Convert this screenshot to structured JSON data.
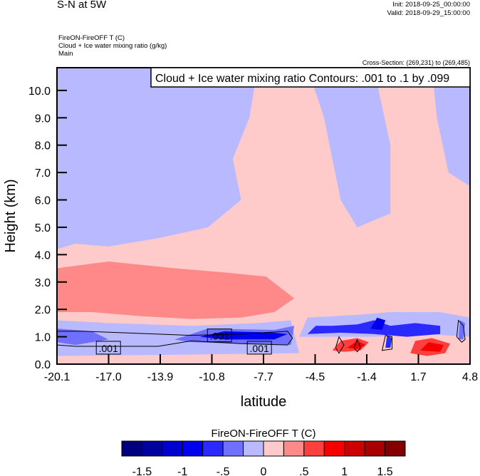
{
  "header": {
    "title": "S-N at 5W",
    "init": "Init: 2018-09-25_00:00:00",
    "valid": "Valid: 2018-09-29_15:00:00",
    "subtitle1": "FireON-FireOFF T   (C)",
    "subtitle2": "Cloud + Ice water mixing ratio   (g/kg)",
    "subtitle3": "Main",
    "cross_section": "Cross-Section: (269,231) to (269,485)"
  },
  "chart_data": {
    "type": "heatmap",
    "title": "Cloud + Ice water mixing ratio Contours: .001 to .1 by .099",
    "xlabel": "latitude",
    "ylabel": "Height (km)",
    "xlim": [
      -20.1,
      4.8
    ],
    "ylim": [
      0,
      10.83
    ],
    "xticks": [
      "-20.1",
      "-17.0",
      "-13.9",
      "-10.8",
      "-7.7",
      "-4.5",
      "-1.4",
      "1.7",
      "4.8"
    ],
    "yticks": [
      "0.0",
      "1.0",
      "2.0",
      "3.0",
      "4.0",
      "5.0",
      "6.0",
      "7.0",
      "8.0",
      "9.0",
      "10.0"
    ],
    "colorbar": {
      "title": "FireON-FireOFF T  (C)",
      "colors": [
        "#00007f",
        "#00009f",
        "#0000cf",
        "#0000f0",
        "#2a2aff",
        "#7070ff",
        "#b9b9ff",
        "#ffcaca",
        "#ff8888",
        "#ff3e3e",
        "#f40000",
        "#cc0000",
        "#a80000",
        "#840000"
      ],
      "levels": [
        -1.5,
        -1.25,
        -1,
        -0.75,
        -0.5,
        -0.25,
        0,
        0.25,
        0.5,
        0.75,
        1,
        1.25,
        1.5
      ],
      "tick_labels": [
        "-1.5",
        "-1",
        "-.5",
        "0",
        ".5",
        "1",
        "1.5"
      ]
    },
    "field_regions": [
      {
        "level": 6,
        "points": [
          [
            -20.1,
            4.2
          ],
          [
            -20.1,
            10.83
          ],
          [
            -8,
            10.83
          ],
          [
            -8.5,
            9
          ],
          [
            -9.5,
            7.5
          ],
          [
            -9,
            6
          ],
          [
            -11,
            5
          ],
          [
            -14,
            4.6
          ],
          [
            -17,
            4.3
          ],
          [
            -19,
            4.4
          ]
        ]
      },
      {
        "level": 6,
        "points": [
          [
            -5,
            10.83
          ],
          [
            -4,
            9
          ],
          [
            -3.5,
            7.5
          ],
          [
            -3,
            6
          ],
          [
            -2,
            5
          ],
          [
            0,
            5.5
          ],
          [
            0,
            8
          ],
          [
            -1,
            10.83
          ]
        ]
      },
      {
        "level": 6,
        "points": [
          [
            2.5,
            10.83
          ],
          [
            2.8,
            9
          ],
          [
            3.5,
            7
          ],
          [
            4.8,
            6.5
          ],
          [
            4.8,
            10.83
          ]
        ]
      },
      {
        "level": 8,
        "points": [
          [
            -20.1,
            1.9
          ],
          [
            -20.1,
            3.5
          ],
          [
            -17,
            3.75
          ],
          [
            -13,
            3.5
          ],
          [
            -10,
            3.35
          ],
          [
            -7.5,
            3.2
          ],
          [
            -5.8,
            2.4
          ],
          [
            -7,
            1.9
          ],
          [
            -9,
            1.7
          ],
          [
            -12,
            1.65
          ],
          [
            -15,
            1.75
          ],
          [
            -18,
            1.9
          ]
        ]
      },
      {
        "level": 6,
        "points": [
          [
            -20.1,
            0.3
          ],
          [
            -20.1,
            1.6
          ],
          [
            -17,
            1.5
          ],
          [
            -12,
            1.4
          ],
          [
            -8,
            1.5
          ],
          [
            -6,
            1.6
          ],
          [
            -5.5,
            0.4
          ],
          [
            -12,
            0.35
          ]
        ]
      },
      {
        "level": 5,
        "points": [
          [
            -20.1,
            0.8
          ],
          [
            -20.1,
            1.3
          ],
          [
            -18,
            1.2
          ],
          [
            -17,
            0.9
          ],
          [
            -19,
            0.7
          ]
        ]
      },
      {
        "level": 5,
        "points": [
          [
            -13,
            0.9
          ],
          [
            -11,
            1.3
          ],
          [
            -7,
            1.25
          ],
          [
            -5.8,
            1.4
          ],
          [
            -6,
            0.7
          ],
          [
            -9,
            0.75
          ],
          [
            -12,
            0.8
          ]
        ]
      },
      {
        "level": 3,
        "points": [
          [
            -11.5,
            1.0
          ],
          [
            -10,
            1.2
          ],
          [
            -7,
            1.15
          ],
          [
            -6.2,
            1.1
          ],
          [
            -7,
            0.9
          ],
          [
            -10,
            0.9
          ]
        ]
      },
      {
        "level": 6,
        "points": [
          [
            -5.5,
            1.0
          ],
          [
            -5,
            1.7
          ],
          [
            -2,
            1.8
          ],
          [
            0,
            1.9
          ],
          [
            3,
            1.9
          ],
          [
            4.8,
            1.7
          ],
          [
            4.8,
            1.0
          ],
          [
            2,
            1.1
          ],
          [
            -1,
            1.0
          ],
          [
            -3,
            1.0
          ]
        ]
      },
      {
        "level": 4,
        "points": [
          [
            -5,
            1.1
          ],
          [
            -4.5,
            1.4
          ],
          [
            -3.5,
            1.4
          ],
          [
            -2,
            1.45
          ],
          [
            -1,
            1.6
          ],
          [
            0,
            1.4
          ],
          [
            1.5,
            1.5
          ],
          [
            3,
            1.4
          ],
          [
            3,
            1.1
          ],
          [
            1,
            1.0
          ],
          [
            -1,
            1.1
          ],
          [
            -3,
            1.15
          ]
        ]
      },
      {
        "level": 3,
        "points": [
          [
            -1.2,
            1.3
          ],
          [
            -0.8,
            1.7
          ],
          [
            -0.3,
            1.6
          ],
          [
            -0.5,
            1.25
          ]
        ]
      },
      {
        "level": 9,
        "points": [
          [
            -3.5,
            0.5
          ],
          [
            -3,
            0.85
          ],
          [
            -2,
            0.95
          ],
          [
            -1.3,
            0.8
          ],
          [
            -1.8,
            0.5
          ],
          [
            -2.8,
            0.45
          ]
        ]
      },
      {
        "level": 10,
        "points": [
          [
            -2.6,
            0.6
          ],
          [
            -2,
            0.85
          ],
          [
            -1.5,
            0.7
          ],
          [
            -2,
            0.55
          ]
        ]
      },
      {
        "level": 9,
        "points": [
          [
            1.2,
            0.4
          ],
          [
            1.5,
            0.85
          ],
          [
            2.5,
            0.95
          ],
          [
            3.6,
            0.75
          ],
          [
            3.3,
            0.4
          ],
          [
            2.2,
            0.3
          ]
        ]
      },
      {
        "level": 10,
        "points": [
          [
            1.8,
            0.5
          ],
          [
            2.3,
            0.8
          ],
          [
            3.2,
            0.7
          ],
          [
            3,
            0.45
          ]
        ]
      },
      {
        "level": 4,
        "points": [
          [
            -0.3,
            0.6
          ],
          [
            -0.2,
            1.05
          ],
          [
            0.1,
            0.95
          ],
          [
            0,
            0.6
          ]
        ]
      },
      {
        "level": 5,
        "points": [
          [
            4.1,
            0.9
          ],
          [
            4.2,
            1.6
          ],
          [
            4.5,
            1.5
          ],
          [
            4.4,
            0.9
          ]
        ]
      }
    ],
    "contours": [
      {
        "value": ".001",
        "points": [
          [
            -20.1,
            0.7
          ],
          [
            -20.1,
            1.2
          ],
          [
            -18.5,
            1.2
          ],
          [
            -12,
            1.05
          ],
          [
            -9,
            1.1
          ],
          [
            -6.2,
            1.2
          ],
          [
            -5.9,
            0.95
          ],
          [
            -6.2,
            0.7
          ],
          [
            -9,
            0.75
          ],
          [
            -12,
            0.85
          ],
          [
            -14,
            0.65
          ],
          [
            -16,
            0.65
          ],
          [
            -19,
            0.65
          ]
        ]
      },
      {
        "value": ".001",
        "points": [
          [
            -3.3,
            0.6
          ],
          [
            -3.1,
            1.0
          ],
          [
            -2.8,
            0.7
          ],
          [
            -3.1,
            0.4
          ]
        ]
      },
      {
        "value": ".001",
        "points": [
          [
            -2.2,
            0.6
          ],
          [
            -2,
            0.9
          ],
          [
            -1.8,
            0.6
          ],
          [
            -2,
            0.45
          ]
        ]
      },
      {
        "value": ".001",
        "points": [
          [
            -0.5,
            0.5
          ],
          [
            -0.3,
            1.05
          ],
          [
            0.1,
            1.0
          ],
          [
            0.1,
            0.55
          ]
        ]
      },
      {
        "value": ".001",
        "points": [
          [
            4.0,
            1.0
          ],
          [
            4.1,
            1.6
          ],
          [
            4.4,
            1.4
          ],
          [
            4.5,
            0.9
          ],
          [
            4.3,
            0.8
          ]
        ]
      }
    ],
    "contour_labels": [
      {
        "text": ".001",
        "x": -17.0,
        "y": 0.6
      },
      {
        "text": ".001",
        "x": -10.3,
        "y": 1.05
      },
      {
        "text": ".001",
        "x": -7.9,
        "y": 0.6
      }
    ]
  }
}
